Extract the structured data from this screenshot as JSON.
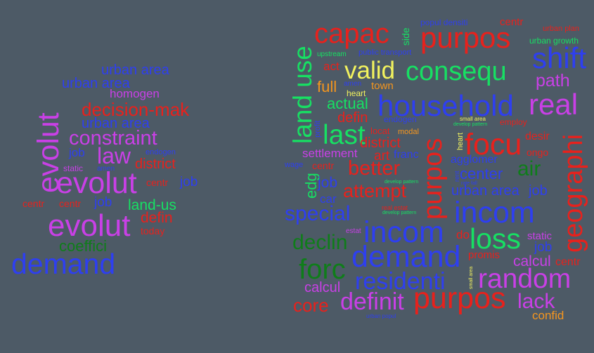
{
  "palette": {
    "background": "#4d5a66",
    "blue": "#2e3ff0",
    "red": "#e8211c",
    "purple": "#c940e6",
    "green": "#17e063",
    "darkgreen": "#0f7d1a",
    "yellow": "#f2f25e",
    "orange": "#f5961e"
  },
  "clouds": [
    {
      "name": "cloud-left",
      "words": [
        {
          "text": "urban area",
          "color": "#2e3ff0"
        },
        {
          "text": "urban area",
          "color": "#2e3ff0"
        },
        {
          "text": "homogen",
          "color": "#c940e6"
        },
        {
          "text": "decision-mak",
          "color": "#e8211c"
        },
        {
          "text": "urban area",
          "color": "#2e3ff0"
        },
        {
          "text": "constraint",
          "color": "#c940e6"
        },
        {
          "text": "job",
          "color": "#2e3ff0"
        },
        {
          "text": "law",
          "color": "#c940e6"
        },
        {
          "text": "endogen",
          "color": "#2e3ff0"
        },
        {
          "text": "district",
          "color": "#e8211c"
        },
        {
          "text": "static",
          "color": "#c940e6"
        },
        {
          "text": "amen",
          "color": "#2e3ff0"
        },
        {
          "text": "evolut",
          "color": "#c940e6"
        },
        {
          "text": "evolut",
          "color": "#c940e6"
        },
        {
          "text": "centr",
          "color": "#e8211c"
        },
        {
          "text": "job",
          "color": "#2e3ff0"
        },
        {
          "text": "centr",
          "color": "#e8211c"
        },
        {
          "text": "centr",
          "color": "#e8211c"
        },
        {
          "text": "job",
          "color": "#2e3ff0"
        },
        {
          "text": "land-us",
          "color": "#17e063"
        },
        {
          "text": "defin",
          "color": "#e8211c"
        },
        {
          "text": "today",
          "color": "#e8211c"
        },
        {
          "text": "evolut",
          "color": "#c940e6"
        },
        {
          "text": "coeffici",
          "color": "#0f7d1a"
        },
        {
          "text": "demand",
          "color": "#2e3ff0"
        }
      ]
    },
    {
      "name": "cloud-right",
      "words": [
        {
          "text": "land use",
          "color": "#17e063"
        },
        {
          "text": "capac",
          "color": "#e8211c"
        },
        {
          "text": "side",
          "color": "#17e063"
        },
        {
          "text": "purpos",
          "color": "#e8211c"
        },
        {
          "text": "popul densiti",
          "color": "#2e3ff0"
        },
        {
          "text": "centr",
          "color": "#e8211c"
        },
        {
          "text": "urban plan",
          "color": "#e8211c"
        },
        {
          "text": "urban growth",
          "color": "#17e063"
        },
        {
          "text": "upstream",
          "color": "#17e063"
        },
        {
          "text": "public transport",
          "color": "#2e3ff0"
        },
        {
          "text": "shift",
          "color": "#2e3ff0"
        },
        {
          "text": "act",
          "color": "#e8211c"
        },
        {
          "text": "valid",
          "color": "#f2f25e"
        },
        {
          "text": "consequ",
          "color": "#17e063"
        },
        {
          "text": "path",
          "color": "#c940e6"
        },
        {
          "text": "full",
          "color": "#f5961e"
        },
        {
          "text": "amen",
          "color": "#2e3ff0"
        },
        {
          "text": "town",
          "color": "#f5961e"
        },
        {
          "text": "heart",
          "color": "#f2f25e"
        },
        {
          "text": "actual",
          "color": "#17e063"
        },
        {
          "text": "household",
          "color": "#2e3ff0"
        },
        {
          "text": "real",
          "color": "#c940e6"
        },
        {
          "text": "profit",
          "color": "#2e3ff0"
        },
        {
          "text": "defin",
          "color": "#e8211c"
        },
        {
          "text": "endogen",
          "color": "#2e3ff0"
        },
        {
          "text": "small area",
          "color": "#f2f25e"
        },
        {
          "text": "develop pattern",
          "color": "#17e063"
        },
        {
          "text": "employ",
          "color": "#e8211c"
        },
        {
          "text": "last",
          "color": "#17e063"
        },
        {
          "text": "modal",
          "color": "#f5961e"
        },
        {
          "text": "locat",
          "color": "#e8211c"
        },
        {
          "text": "district",
          "color": "#e8211c"
        },
        {
          "text": "purpos",
          "color": "#e8211c"
        },
        {
          "text": "heart",
          "color": "#f2f25e"
        },
        {
          "text": "focu",
          "color": "#e8211c"
        },
        {
          "text": "desir",
          "color": "#e8211c"
        },
        {
          "text": "geographi",
          "color": "#e8211c"
        },
        {
          "text": "settlement",
          "color": "#c940e6"
        },
        {
          "text": "art",
          "color": "#e8211c"
        },
        {
          "text": "franc",
          "color": "#2e3ff0"
        },
        {
          "text": "ongo",
          "color": "#e8211c"
        },
        {
          "text": "wage",
          "color": "#2e3ff0"
        },
        {
          "text": "centr",
          "color": "#e8211c"
        },
        {
          "text": "better",
          "color": "#e8211c"
        },
        {
          "text": "agglomer",
          "color": "#2e3ff0"
        },
        {
          "text": "air",
          "color": "#0f7d1a"
        },
        {
          "text": "edg",
          "color": "#17e063"
        },
        {
          "text": "job",
          "color": "#2e3ff0"
        },
        {
          "text": "develop pattern",
          "color": "#17e063"
        },
        {
          "text": "rent",
          "color": "#2e3ff0"
        },
        {
          "text": "center",
          "color": "#2e3ff0"
        },
        {
          "text": "rate fall",
          "color": "#2e3ff0"
        },
        {
          "text": "car",
          "color": "#2e3ff0"
        },
        {
          "text": "attempt",
          "color": "#e8211c"
        },
        {
          "text": "urban area",
          "color": "#2e3ff0"
        },
        {
          "text": "job",
          "color": "#2e3ff0"
        },
        {
          "text": "special",
          "color": "#2e3ff0"
        },
        {
          "text": "real estat",
          "color": "#e8211c"
        },
        {
          "text": "develop pattern",
          "color": "#17e063"
        },
        {
          "text": "incom",
          "color": "#2e3ff0"
        },
        {
          "text": "estat",
          "color": "#c940e6"
        },
        {
          "text": "incom",
          "color": "#2e3ff0"
        },
        {
          "text": "do",
          "color": "#e8211c"
        },
        {
          "text": "loss",
          "color": "#17e063"
        },
        {
          "text": "static",
          "color": "#c940e6"
        },
        {
          "text": "declin",
          "color": "#0f7d1a"
        },
        {
          "text": "job",
          "color": "#2e3ff0"
        },
        {
          "text": "demand",
          "color": "#2e3ff0"
        },
        {
          "text": "promis",
          "color": "#e8211c"
        },
        {
          "text": "calcul",
          "color": "#c940e6"
        },
        {
          "text": "centr",
          "color": "#e8211c"
        },
        {
          "text": "forc",
          "color": "#0f7d1a"
        },
        {
          "text": "small area",
          "color": "#f2f25e"
        },
        {
          "text": "residenti",
          "color": "#2e3ff0"
        },
        {
          "text": "random",
          "color": "#c940e6"
        },
        {
          "text": "calcul",
          "color": "#c940e6"
        },
        {
          "text": "core",
          "color": "#e8211c"
        },
        {
          "text": "definit",
          "color": "#c940e6"
        },
        {
          "text": "purpos",
          "color": "#e8211c"
        },
        {
          "text": "lack",
          "color": "#c940e6"
        },
        {
          "text": "urban popul",
          "color": "#2e3ff0"
        },
        {
          "text": "confid",
          "color": "#f5961e"
        }
      ]
    }
  ]
}
